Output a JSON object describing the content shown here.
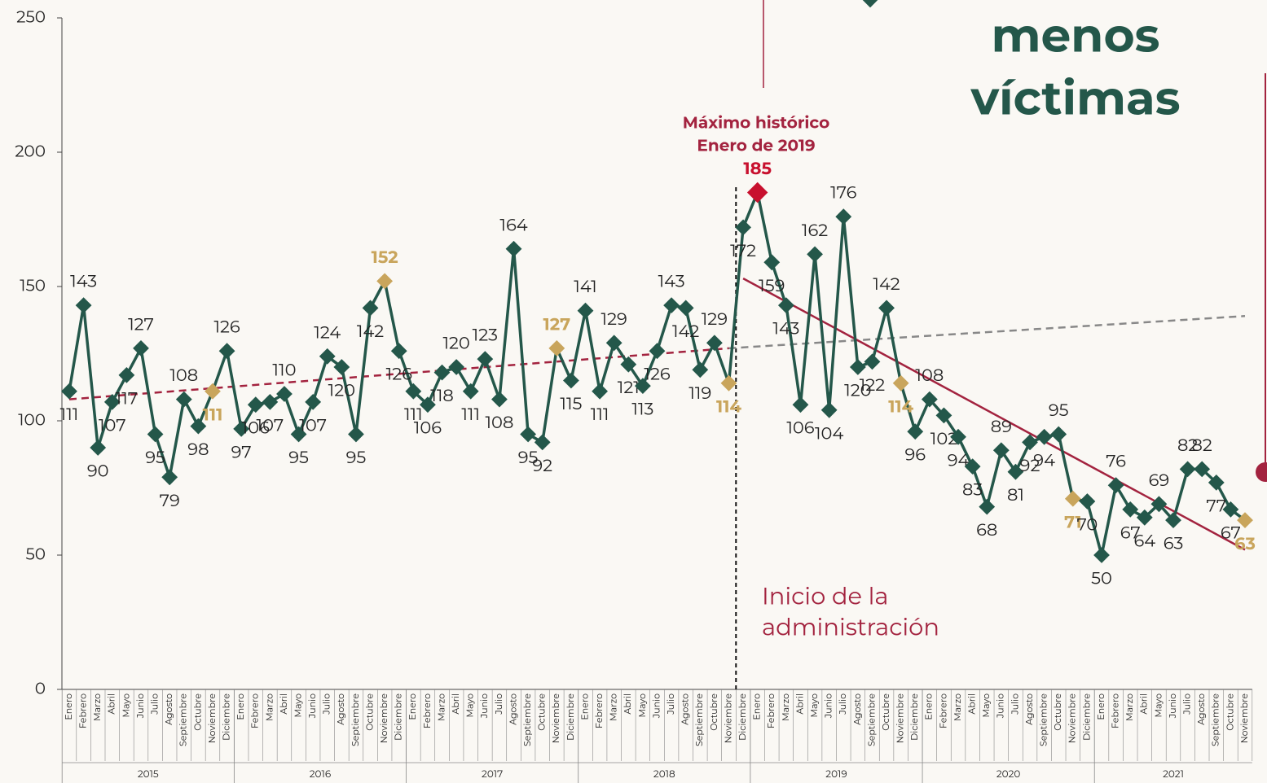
{
  "headline": [
    "menos",
    "víctimas"
  ],
  "chart_data": {
    "type": "line",
    "categories": [
      "Enero",
      "Febrero",
      "Marzo",
      "Abril",
      "Mayo",
      "Junio",
      "Julio",
      "Agosto",
      "Septiembre",
      "Octubre",
      "Noviembre",
      "Diciembre",
      "Enero",
      "Febrero",
      "Marzo",
      "Abril",
      "Mayo",
      "Junio",
      "Julio",
      "Agosto",
      "Septiembre",
      "Octubre",
      "Noviembre",
      "Diciembre",
      "Enero",
      "Febrero",
      "Marzo",
      "Abril",
      "Mayo",
      "Junio",
      "Julio",
      "Agosto",
      "Septiembre",
      "Octubre",
      "Noviembre",
      "Diciembre",
      "Enero",
      "Febrero",
      "Marzo",
      "Abril",
      "Mayo",
      "Junio",
      "Julio",
      "Agosto",
      "Septiembre",
      "Octubre",
      "Noviembre",
      "Diciembre",
      "Enero",
      "Febrero",
      "Marzo",
      "Abril",
      "Mayo",
      "Junio",
      "Julio",
      "Agosto",
      "Septiembre",
      "Octubre",
      "Noviembre",
      "Diciembre",
      "Enero",
      "Febrero",
      "Marzo",
      "Abril",
      "Mayo",
      "Junio",
      "Julio",
      "Agosto",
      "Septiembre",
      "Octubre",
      "Noviembre",
      "Diciembre",
      "Enero",
      "Febrero",
      "Marzo",
      "Abril",
      "Mayo",
      "Junio",
      "Julio",
      "Agosto",
      "Septiembre",
      "Octubre",
      "Noviembre"
    ],
    "years": [
      "2015",
      "2016",
      "2017",
      "2018",
      "2019",
      "2020",
      "2021"
    ],
    "series": [
      {
        "color": "#24574a",
        "values": [
          111,
          143,
          90,
          107,
          117,
          127,
          95,
          79,
          108,
          98,
          111,
          126,
          97,
          106,
          107,
          110,
          95,
          107,
          124,
          120,
          95,
          142,
          152,
          126,
          111,
          106,
          118,
          120,
          111,
          123,
          108,
          164,
          95,
          92,
          127,
          115,
          141,
          111,
          129,
          121,
          113,
          126,
          143,
          142,
          119,
          129,
          114,
          172,
          185,
          159,
          143,
          106,
          162,
          104,
          176,
          120,
          122,
          142,
          114,
          96,
          108,
          102,
          94,
          83,
          68,
          89,
          81,
          92,
          94,
          95,
          71,
          70,
          50,
          76,
          67,
          64,
          69,
          63,
          82,
          82,
          77,
          67,
          63
        ]
      }
    ],
    "highlight_month": "Noviembre",
    "highlight_color": "#c9a55c",
    "peak_color": "#c8102e",
    "ylim": [
      0,
      250
    ],
    "yticks": [
      0,
      50,
      100,
      150,
      200,
      250
    ],
    "trends": [
      {
        "from": {
          "year": "2015",
          "month": "Enero",
          "value": 108
        },
        "to": {
          "year": "2018",
          "month": "Noviembre",
          "value": 127
        },
        "color": "#a3233f",
        "dash": true
      },
      {
        "from": {
          "year": "2018",
          "month": "Noviembre",
          "value": 127
        },
        "to": {
          "year": "2021",
          "month": "Noviembre",
          "value": 139
        },
        "color": "#888888",
        "dash": true
      },
      {
        "from": {
          "year": "2018",
          "month": "Diciembre",
          "value": 153
        },
        "to": {
          "year": "2021",
          "month": "Noviembre",
          "value": 52
        },
        "color": "#a3233f",
        "dash": false
      }
    ],
    "admin_start": {
      "year": "2018",
      "month": "Diciembre"
    },
    "annotations": {
      "peak": [
        "Máximo histórico",
        "Enero de 2019"
      ],
      "admin": [
        "Inicio de la",
        "administración"
      ]
    }
  }
}
